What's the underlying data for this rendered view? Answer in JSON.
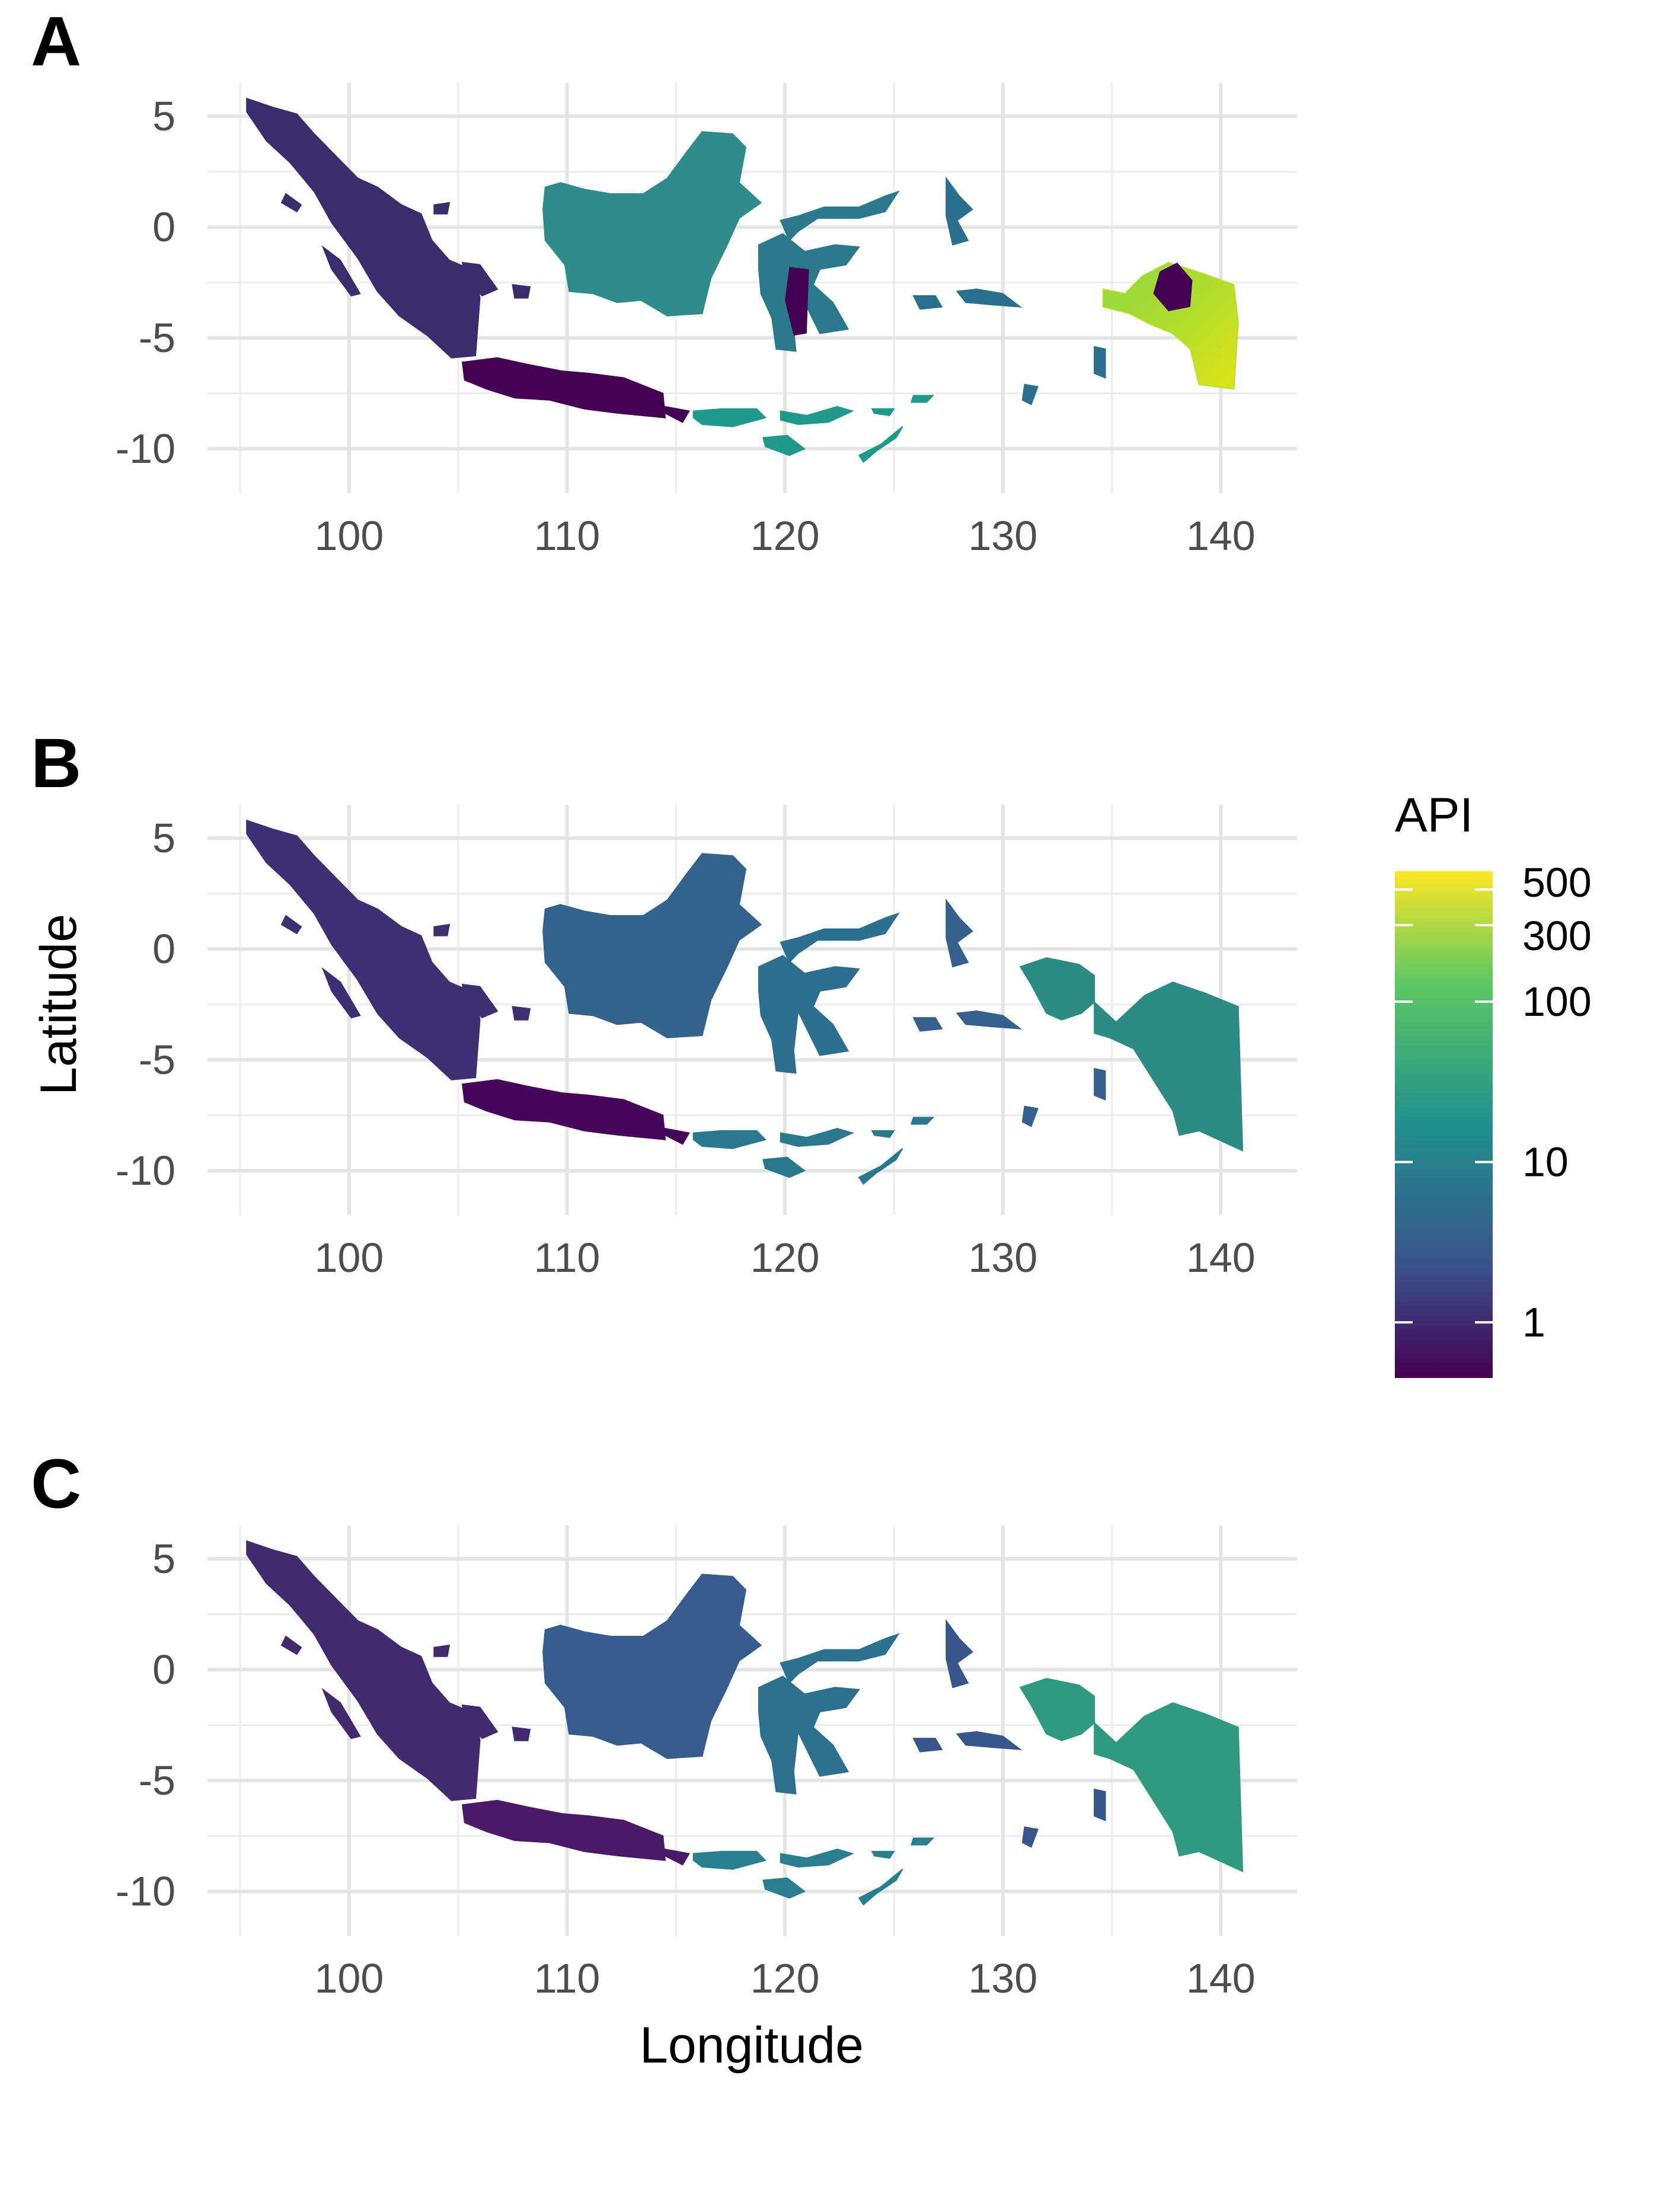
{
  "figure": {
    "y_axis_label": "Latitude",
    "x_axis_label": "Longitude"
  },
  "legend": {
    "title": "API",
    "scale": "log",
    "palette": [
      "#440154",
      "#3b528b",
      "#21908c",
      "#5dc863",
      "#fde725"
    ],
    "ticks": [
      {
        "value": 1,
        "label": "1"
      },
      {
        "value": 10,
        "label": "10"
      },
      {
        "value": 100,
        "label": "100"
      },
      {
        "value": 300,
        "label": "300"
      },
      {
        "value": 500,
        "label": "500"
      }
    ]
  },
  "chart_data": [
    {
      "type": "map",
      "panel_label": "A",
      "xlim": [
        93.5,
        143.5
      ],
      "ylim": [
        -12,
        6.5
      ],
      "x_ticks": [
        100,
        110,
        120,
        130,
        140
      ],
      "x_tick_labels": [
        "100",
        "110",
        "120",
        "130",
        "140"
      ],
      "y_ticks": [
        -10,
        -5,
        0,
        5
      ],
      "y_tick_labels": [
        "-10",
        "-5",
        "0",
        "5"
      ],
      "grid": true,
      "coloring": "district-level (administrative units)",
      "papua_region": "partial (eastern districts only)",
      "regions": [
        {
          "name": "Sumatra",
          "color": "#3a2d6e"
        },
        {
          "name": "Java",
          "color": "#440154"
        },
        {
          "name": "Kalimantan",
          "color": "#2f8c8a"
        },
        {
          "name": "Sulawesi",
          "color": "#2b7a8c"
        },
        {
          "name": "Nusa Tenggara",
          "color": "#1f9a8a"
        },
        {
          "name": "Maluku",
          "color": "#2a6f8e"
        },
        {
          "name": "Papua",
          "color": "#8fd744"
        }
      ]
    },
    {
      "type": "map",
      "panel_label": "B",
      "xlim": [
        93.5,
        143.5
      ],
      "ylim": [
        -12,
        6.5
      ],
      "x_ticks": [
        100,
        110,
        120,
        130,
        140
      ],
      "x_tick_labels": [
        "100",
        "110",
        "120",
        "130",
        "140"
      ],
      "y_ticks": [
        -10,
        -5,
        0,
        5
      ],
      "y_tick_labels": [
        "-10",
        "-5",
        "0",
        "5"
      ],
      "grid": true,
      "coloring": "continuous surface",
      "regions": [
        {
          "name": "Sumatra",
          "color": "#3e2f73"
        },
        {
          "name": "Java",
          "color": "#46075a"
        },
        {
          "name": "Kalimantan",
          "color": "#33628d"
        },
        {
          "name": "Sulawesi",
          "color": "#2c6f8e"
        },
        {
          "name": "Nusa Tenggara",
          "color": "#2a788e"
        },
        {
          "name": "Maluku",
          "color": "#35608d"
        },
        {
          "name": "Papua",
          "color": "#2c8c84"
        }
      ]
    },
    {
      "type": "map",
      "panel_label": "C",
      "xlim": [
        93.5,
        143.5
      ],
      "ylim": [
        -12,
        6.5
      ],
      "x_ticks": [
        100,
        110,
        120,
        130,
        140
      ],
      "x_tick_labels": [
        "100",
        "110",
        "120",
        "130",
        "140"
      ],
      "y_ticks": [
        -10,
        -5,
        0,
        5
      ],
      "y_tick_labels": [
        "-10",
        "-5",
        "0",
        "5"
      ],
      "grid": true,
      "coloring": "continuous surface",
      "regions": [
        {
          "name": "Sumatra",
          "color": "#412a6e"
        },
        {
          "name": "Java",
          "color": "#4a1a68"
        },
        {
          "name": "Kalimantan",
          "color": "#365c8d"
        },
        {
          "name": "Sulawesi",
          "color": "#2d718e"
        },
        {
          "name": "Nusa Tenggara",
          "color": "#2a7f8e"
        },
        {
          "name": "Maluku",
          "color": "#39568c"
        },
        {
          "name": "Papua",
          "color": "#2f9a7e"
        }
      ]
    }
  ]
}
